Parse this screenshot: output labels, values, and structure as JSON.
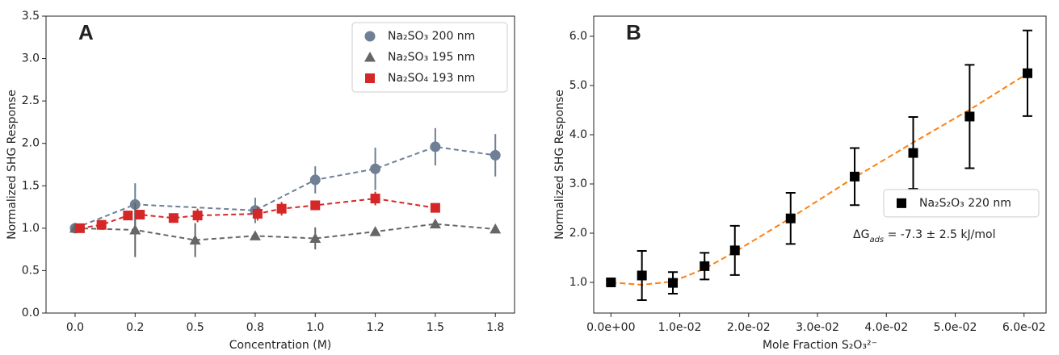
{
  "chart_data": [
    {
      "type": "scatter",
      "panel_label": "A",
      "xlabel": "Concentration (M)",
      "ylabel": "Normalized SHG Response",
      "xlim": [
        -0.121,
        1.83
      ],
      "ylim": [
        0,
        3.5
      ],
      "xticks": [
        {
          "value": 0,
          "label": "0.0"
        },
        {
          "value": 0.25,
          "label": "0.2"
        },
        {
          "value": 0.5,
          "label": "0.5"
        },
        {
          "value": 0.75,
          "label": "0.8"
        },
        {
          "value": 1,
          "label": "1.0"
        },
        {
          "value": 1.25,
          "label": "1.2"
        },
        {
          "value": 1.5,
          "label": "1.5"
        },
        {
          "value": 1.75,
          "label": "1.8"
        }
      ],
      "yticks": [
        {
          "value": 0,
          "label": "0.0"
        },
        {
          "value": 0.5,
          "label": "0.5"
        },
        {
          "value": 1,
          "label": "1.0"
        },
        {
          "value": 1.5,
          "label": "1.5"
        },
        {
          "value": 2,
          "label": "2.0"
        },
        {
          "value": 2.5,
          "label": "2.5"
        },
        {
          "value": 3,
          "label": "3.0"
        },
        {
          "value": 3.5,
          "label": "3.5"
        }
      ],
      "legend": "upper right",
      "series": [
        {
          "name": "Na₂SO₃ 200 nm",
          "color": "#6f7f96",
          "marker": "circle",
          "x": [
            0,
            0.25,
            0.75,
            1,
            1.25,
            1.5,
            1.75
          ],
          "values": [
            1.0,
            1.28,
            1.21,
            1.57,
            1.7,
            1.96,
            1.86
          ],
          "errors": [
            0.05,
            0.25,
            0.15,
            0.16,
            0.25,
            0.22,
            0.25
          ]
        },
        {
          "name": "Na₂SO₃ 195 nm",
          "color": "#666666",
          "marker": "triangle",
          "x": [
            0,
            0.25,
            0.5,
            0.75,
            1,
            1.25,
            1.5,
            1.75
          ],
          "values": [
            1.0,
            0.98,
            0.86,
            0.91,
            0.88,
            0.96,
            1.05,
            0.99
          ],
          "errors": [
            0.05,
            0.32,
            0.2,
            0.05,
            0.13,
            0.04,
            0.04,
            0.03
          ]
        },
        {
          "name": "Na₂SO₄ 193 nm",
          "color": "#d62728",
          "marker": "square",
          "x": [
            0.02,
            0.11,
            0.22,
            0.27,
            0.41,
            0.51,
            0.76,
            0.86,
            1.0,
            1.25,
            1.5
          ],
          "values": [
            1.0,
            1.04,
            1.15,
            1.16,
            1.12,
            1.15,
            1.17,
            1.23,
            1.27,
            1.35,
            1.24
          ],
          "errors": [
            0.05,
            0.04,
            0.04,
            0.04,
            0.05,
            0.08,
            0.08,
            0.08,
            0.04,
            0.08,
            0.03
          ]
        }
      ]
    },
    {
      "type": "scatter",
      "panel_label": "B",
      "xlabel": "Mole Fraction S₂O₃²⁻",
      "ylabel": "Normalized SHG Response",
      "xlim": [
        -0.0025,
        0.0632
      ],
      "ylim": [
        0.377,
        6.41
      ],
      "xticks": [
        {
          "value": 0,
          "label": "0.0e+00"
        },
        {
          "value": 0.01,
          "label": "1.0e-02"
        },
        {
          "value": 0.02,
          "label": "2.0e-02"
        },
        {
          "value": 0.03,
          "label": "3.0e-02"
        },
        {
          "value": 0.04,
          "label": "4.0e-02"
        },
        {
          "value": 0.05,
          "label": "5.0e-02"
        },
        {
          "value": 0.06,
          "label": "6.0e-02"
        }
      ],
      "yticks": [
        {
          "value": 1,
          "label": "1.0"
        },
        {
          "value": 2,
          "label": "2.0"
        },
        {
          "value": 3,
          "label": "3.0"
        },
        {
          "value": 4,
          "label": "4.0"
        },
        {
          "value": 5,
          "label": "5.0"
        },
        {
          "value": 6,
          "label": "6.0"
        }
      ],
      "legend": "center right",
      "annotation": [
        "ΔG",
        "ads",
        " = -7.3 ± 2.5 kJ/mol"
      ],
      "fit": {
        "color": "#ff7f0e",
        "x": [
          0,
          0.0045,
          0.009,
          0.0135,
          0.018,
          0.026,
          0.035,
          0.044,
          0.052,
          0.06
        ],
        "values": [
          1.0,
          0.95,
          1.02,
          1.27,
          1.62,
          2.3,
          3.1,
          3.85,
          4.5,
          5.2
        ]
      },
      "series": [
        {
          "name": "Na₂S₂O₃ 220 nm",
          "color": "#000000",
          "marker": "square",
          "capsize": 6,
          "x": [
            0,
            0.0045,
            0.009,
            0.0136,
            0.018,
            0.0261,
            0.0354,
            0.0439,
            0.0521,
            0.0605
          ],
          "values": [
            1.0,
            1.14,
            0.99,
            1.33,
            1.65,
            2.3,
            3.15,
            3.63,
            4.37,
            5.25
          ],
          "errors": [
            0.04,
            0.5,
            0.22,
            0.27,
            0.5,
            0.52,
            0.58,
            0.73,
            1.05,
            0.87
          ]
        }
      ]
    }
  ]
}
